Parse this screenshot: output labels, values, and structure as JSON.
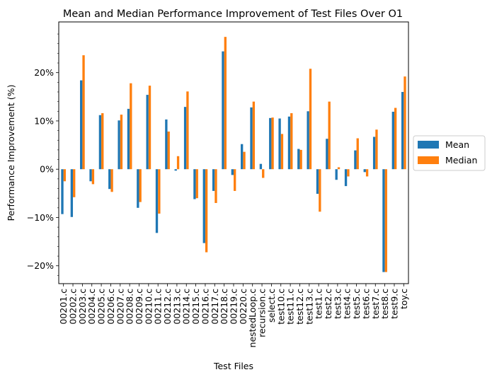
{
  "chart_data": {
    "type": "bar",
    "title": "Mean and Median Performance Improvement of Test Files Over O1",
    "xlabel": "Test Files",
    "ylabel": "Performance Improvement (%)",
    "ylim": [
      -23.7,
      30.5
    ],
    "yticks": [
      -20,
      -10,
      0,
      10,
      20
    ],
    "ytick_labels": [
      "−20%",
      "−10%",
      "0%",
      "10%",
      "20%"
    ],
    "grid": false,
    "legend_position": "center-right-outside",
    "categories": [
      "00201.c",
      "00202.c",
      "00203.c",
      "00204.c",
      "00205.c",
      "00206.c",
      "00207.c",
      "00208.c",
      "00209.c",
      "00210.c",
      "00211.c",
      "00212.c",
      "00213.c",
      "00214.c",
      "00215.c",
      "00216.c",
      "00217.c",
      "00218.c",
      "00219.c",
      "00220.c",
      "nestedLoop.c",
      "recursion.c",
      "select.c",
      "test10.c",
      "test11.c",
      "test12.c",
      "test13.c",
      "test1.c",
      "test2.c",
      "test3.c",
      "test4.c",
      "test5.c",
      "test6.c",
      "test7.c",
      "test8.c",
      "test9.c",
      "toy.c"
    ],
    "series": [
      {
        "name": "Mean",
        "color": "#1f77b4",
        "values": [
          -9.3,
          -9.9,
          18.4,
          -2.5,
          11.2,
          -4.1,
          10.1,
          12.5,
          -8.0,
          15.4,
          -13.2,
          10.3,
          -0.3,
          12.9,
          -6.2,
          -15.3,
          -4.5,
          24.4,
          -1.2,
          5.2,
          12.8,
          1.1,
          10.6,
          10.5,
          10.9,
          4.2,
          12.0,
          -5.1,
          6.3,
          -2.2,
          -3.5,
          3.9,
          -0.6,
          6.7,
          -21.3,
          11.9,
          16.0
        ]
      },
      {
        "name": "Median",
        "color": "#ff7f0e",
        "values": [
          -2.5,
          -5.8,
          23.6,
          -3.1,
          11.6,
          -4.7,
          11.3,
          17.8,
          -6.8,
          17.3,
          -9.2,
          7.8,
          2.7,
          16.1,
          -6.0,
          -17.2,
          -7.0,
          27.4,
          -4.5,
          3.6,
          14.0,
          -1.8,
          10.7,
          7.3,
          11.6,
          4.0,
          20.8,
          -8.8,
          14.0,
          0.4,
          -1.5,
          6.4,
          -1.5,
          8.2,
          -21.3,
          12.7,
          19.2
        ]
      }
    ]
  }
}
